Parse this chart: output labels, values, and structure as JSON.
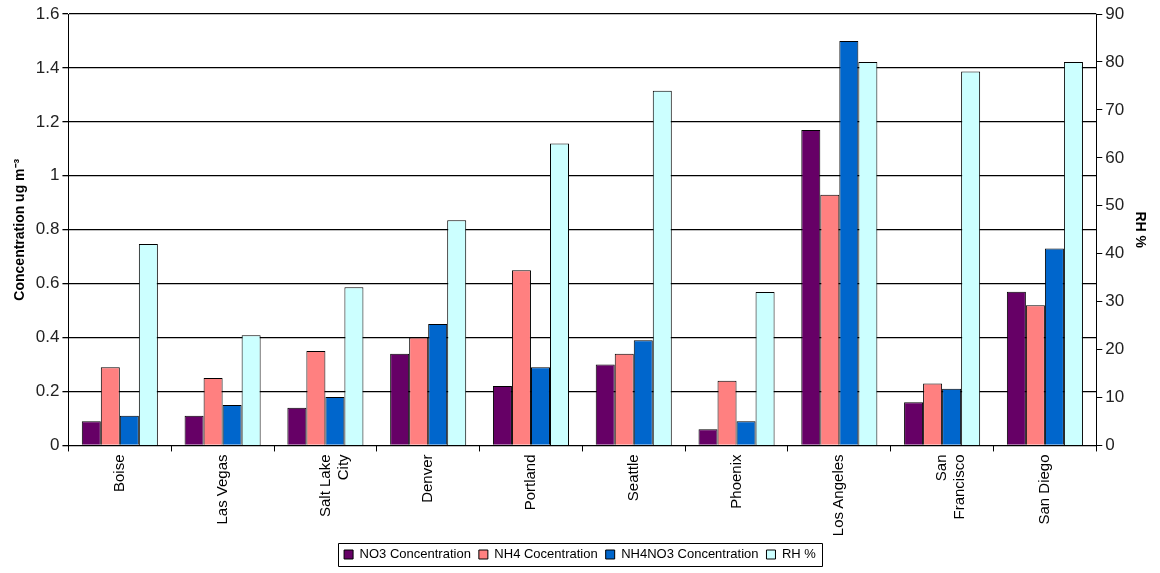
{
  "chart_data": {
    "type": "bar",
    "ylabel": "Concentration ug m⁻³",
    "y2label": "RH %",
    "categories": [
      "Boise",
      "Las Vegas",
      "Salt Lake City",
      "Denver",
      "Portland",
      "Seattle",
      "Phoenix",
      "Los Angeles",
      "San Francisco",
      "San Diego"
    ],
    "series": [
      {
        "name": "NO3 Concentration",
        "color": "#660066",
        "values": [
          0.09,
          0.11,
          0.14,
          0.34,
          0.22,
          0.3,
          0.06,
          1.17,
          0.16,
          0.57
        ]
      },
      {
        "name": "NH4 Cocentration",
        "color": "#ff8080",
        "values": [
          0.29,
          0.25,
          0.35,
          0.4,
          0.65,
          0.34,
          0.24,
          0.93,
          0.23,
          0.52
        ]
      },
      {
        "name": "NH4NO3 Concentration",
        "color": "#0066cc",
        "values": [
          0.11,
          0.15,
          0.18,
          0.45,
          0.29,
          0.39,
          0.09,
          1.5,
          0.21,
          0.73
        ]
      },
      {
        "name": "RH %",
        "color": "#ccffff",
        "axis": "y2",
        "values": [
          42,
          23,
          33,
          47,
          63,
          74,
          32,
          80,
          78,
          80
        ]
      }
    ],
    "ylim": [
      0,
      1.6
    ],
    "yticks": [
      0,
      0.2,
      0.4,
      0.6,
      0.8,
      1,
      1.2,
      1.4,
      1.6
    ],
    "y2lim": [
      0,
      90
    ],
    "y2ticks": [
      0,
      10,
      20,
      30,
      40,
      50,
      60,
      70,
      80,
      90
    ],
    "grid": "y",
    "legend": "bottom"
  }
}
